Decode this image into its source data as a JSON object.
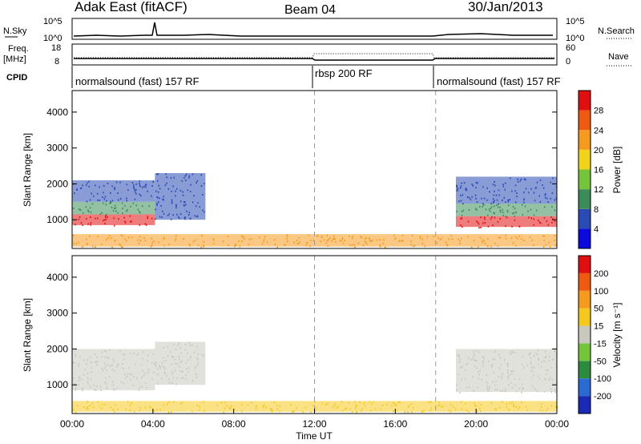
{
  "header": {
    "station": "Adak East (fitACF)",
    "beam": "Beam 04",
    "date": "30/Jan/2013"
  },
  "top_panels": {
    "nsky_label": "N.Sky",
    "nsky_ticks": [
      "10^5",
      "10^0"
    ],
    "nsearch_label": "N.Search",
    "nsearch_ticks": [
      "10^5",
      "10^0"
    ],
    "freq_label": "Freq.",
    "freq_unit": "[MHz]",
    "freq_ticks": [
      "18",
      "8"
    ],
    "nave_label": "Nave",
    "nave_ticks": [
      "60",
      "0"
    ],
    "cpid_label": "CPID",
    "cpid_segments": [
      {
        "start": 0,
        "end": 12,
        "label": "normalsound (fast) 157 RF"
      },
      {
        "start": 12,
        "end": 18,
        "label": "rbsp 200 RF"
      },
      {
        "start": 18,
        "end": 24,
        "label": "normalsound (fast) 157 RF"
      }
    ]
  },
  "chart_data": [
    {
      "type": "heatmap",
      "name": "power",
      "xlabel": "",
      "ylabel": "Slant Range [km]",
      "xlim": [
        0,
        24
      ],
      "ylim": [
        200,
        4600
      ],
      "yticks": [
        1000,
        2000,
        3000,
        4000
      ],
      "colorbar": {
        "label": "Power [dB]",
        "ticks": [
          "4",
          "8",
          "12",
          "16",
          "20",
          "24",
          "28"
        ],
        "colors": [
          "#0a0adc",
          "#2a4ab4",
          "#3c8c5a",
          "#74c43c",
          "#f2d21a",
          "#f59a1e",
          "#ee5a10",
          "#e01010"
        ]
      },
      "bands": [
        {
          "t0": 0.0,
          "t1": 4.1,
          "r0": 850,
          "r1": 1150,
          "color": "#e01010"
        },
        {
          "t0": 0.0,
          "t1": 4.1,
          "r0": 1150,
          "r1": 1500,
          "color": "#3c8c5a"
        },
        {
          "t0": 0.0,
          "t1": 4.1,
          "r0": 1500,
          "r1": 2100,
          "color": "#2a4ab4"
        },
        {
          "t0": 4.1,
          "t1": 6.6,
          "r0": 1000,
          "r1": 2300,
          "color": "#2a4ab4"
        },
        {
          "t0": 19.0,
          "t1": 24.0,
          "r0": 800,
          "r1": 1100,
          "color": "#e01010"
        },
        {
          "t0": 19.0,
          "t1": 24.0,
          "r0": 1100,
          "r1": 1450,
          "color": "#3c8c5a"
        },
        {
          "t0": 19.0,
          "t1": 24.0,
          "r0": 1450,
          "r1": 2200,
          "color": "#2a4ab4"
        },
        {
          "t0": 0.0,
          "t1": 24.0,
          "r0": 250,
          "r1": 600,
          "color": "#f59a1e"
        }
      ]
    },
    {
      "type": "heatmap",
      "name": "velocity",
      "xlabel": "Time UT",
      "ylabel": "Slant Range [km]",
      "xlim": [
        0,
        24
      ],
      "ylim": [
        200,
        4600
      ],
      "yticks": [
        1000,
        2000,
        3000,
        4000
      ],
      "xticks": [
        "00:00",
        "04:00",
        "08:00",
        "12:00",
        "16:00",
        "20:00",
        "00:00"
      ],
      "colorbar": {
        "label": "Velocity [m s⁻¹]",
        "ticks": [
          "200",
          "100",
          "50",
          "15",
          "-15",
          "-50",
          "-100",
          "-200"
        ],
        "colors": [
          "#1a2ab4",
          "#2a6ad2",
          "#2a8c3c",
          "#74c43c",
          "#c8c8be",
          "#f5c81e",
          "#f59a1e",
          "#ee5a10",
          "#e01010"
        ]
      },
      "bands": [
        {
          "t0": 0.0,
          "t1": 4.1,
          "r0": 850,
          "r1": 2000,
          "color": "#c8c8be"
        },
        {
          "t0": 4.1,
          "t1": 6.6,
          "r0": 1000,
          "r1": 2200,
          "color": "#c8c8be"
        },
        {
          "t0": 19.0,
          "t1": 24.0,
          "r0": 800,
          "r1": 2000,
          "color": "#c8c8be"
        },
        {
          "t0": 0.0,
          "t1": 24.0,
          "r0": 250,
          "r1": 550,
          "color": "#f5c81e"
        }
      ]
    }
  ]
}
